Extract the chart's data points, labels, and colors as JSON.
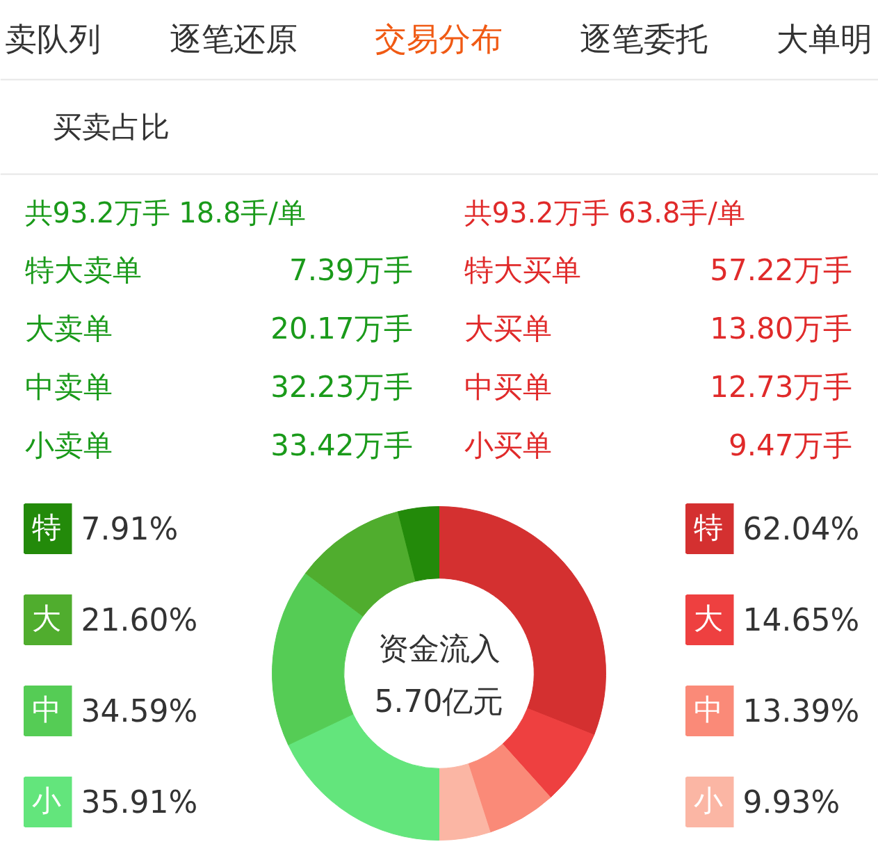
{
  "chart_data": {
    "type": "donut",
    "title": "买卖占比",
    "categories": [
      "特",
      "大",
      "中",
      "小",
      "小",
      "中",
      "大",
      "特"
    ],
    "values": [
      62.04,
      14.65,
      13.39,
      9.93,
      35.91,
      34.59,
      21.6,
      7.91
    ],
    "colors": [
      "#d43030",
      "#ee4040",
      "#fa8a78",
      "#fbb6a4",
      "#63e57c",
      "#55cc55",
      "#50ad2e",
      "#238a0a"
    ],
    "legend": "left",
    "value_labels": [
      "62.04%",
      "14.65%",
      "13.39%",
      "9.93%",
      "35.91%",
      "34.59%",
      "21.60%",
      "7.91%"
    ],
    "annotations": [
      "卖队列",
      "逐笔还原",
      "交易分布",
      "逐笔委托",
      "大单明",
      "共93.2万手 18.8手/单",
      "共93.2万手 63.8手/单",
      "特大卖单",
      "7.39万手",
      "大卖单",
      "20.17万手",
      "中卖单",
      "32.23万手",
      "小卖单",
      "33.42万手",
      "特大买单",
      "57.22万手",
      "大买单",
      "13.80万手",
      "中买单",
      "12.73万手",
      "小买单",
      "9.47万手",
      "资金流入",
      "5.70亿元"
    ]
  }
}
